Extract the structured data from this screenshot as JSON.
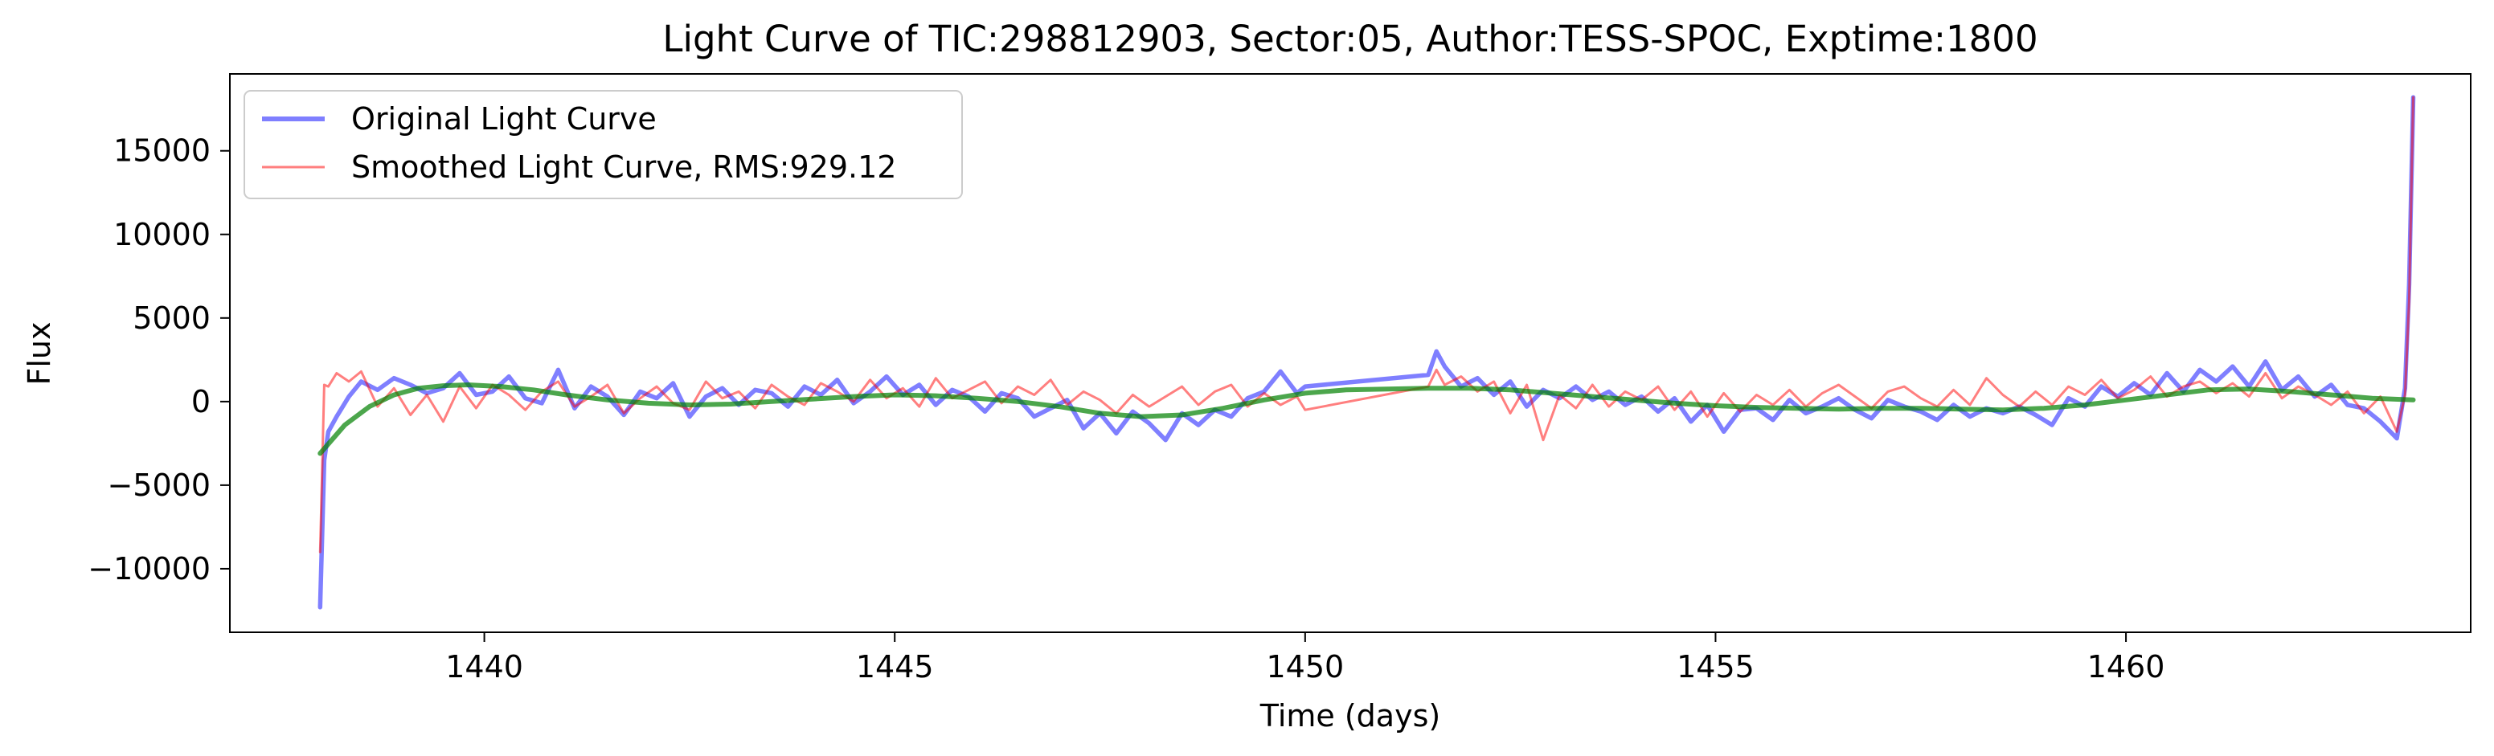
{
  "chart_data": {
    "type": "line",
    "title": "Light Curve of TIC:298812903, Sector:05, Author:TESS-SPOC, Exptime:1800",
    "xlabel": "Time (days)",
    "ylabel": "Flux",
    "xlim": [
      1436.9,
      1464.2
    ],
    "ylim": [
      -13800,
      19600
    ],
    "xticks": [
      1440,
      1445,
      1450,
      1455,
      1460
    ],
    "yticks": [
      -10000,
      -5000,
      0,
      5000,
      10000,
      15000
    ],
    "xtick_labels": [
      "1440",
      "1445",
      "1450",
      "1455",
      "1460"
    ],
    "ytick_labels": [
      "−10000",
      "−5000",
      "0",
      "5000",
      "10000",
      "15000"
    ],
    "grid": false,
    "legend": {
      "placement": "top-left",
      "entries": [
        "Original Light Curve",
        "Smoothed Light Curve, RMS:929.12"
      ]
    },
    "series": [
      {
        "name": "Original Light Curve",
        "color": "#0000ff",
        "opacity": 0.5,
        "style": "thick",
        "x": [
          1438.0,
          1438.05,
          1438.1,
          1438.2,
          1438.35,
          1438.5,
          1438.7,
          1438.9,
          1439.1,
          1439.3,
          1439.5,
          1439.7,
          1439.9,
          1440.1,
          1440.3,
          1440.5,
          1440.7,
          1440.9,
          1441.1,
          1441.3,
          1441.5,
          1441.7,
          1441.9,
          1442.1,
          1442.3,
          1442.5,
          1442.7,
          1442.9,
          1443.1,
          1443.3,
          1443.5,
          1443.7,
          1443.9,
          1444.1,
          1444.3,
          1444.5,
          1444.7,
          1444.9,
          1445.1,
          1445.3,
          1445.5,
          1445.7,
          1445.9,
          1446.1,
          1446.3,
          1446.5,
          1446.7,
          1446.9,
          1447.1,
          1447.3,
          1447.5,
          1447.7,
          1447.9,
          1448.1,
          1448.3,
          1448.5,
          1448.7,
          1448.9,
          1449.1,
          1449.3,
          1449.5,
          1449.7,
          1449.9,
          1450.0,
          1451.5,
          1451.6,
          1451.7,
          1451.9,
          1452.1,
          1452.3,
          1452.5,
          1452.7,
          1452.9,
          1453.1,
          1453.3,
          1453.5,
          1453.7,
          1453.9,
          1454.1,
          1454.3,
          1454.5,
          1454.7,
          1454.9,
          1455.1,
          1455.3,
          1455.5,
          1455.7,
          1455.9,
          1456.1,
          1456.3,
          1456.5,
          1456.7,
          1456.9,
          1457.1,
          1457.3,
          1457.5,
          1457.7,
          1457.9,
          1458.1,
          1458.3,
          1458.5,
          1458.7,
          1458.9,
          1459.1,
          1459.3,
          1459.5,
          1459.7,
          1459.9,
          1460.1,
          1460.3,
          1460.5,
          1460.7,
          1460.9,
          1461.1,
          1461.3,
          1461.5,
          1461.7,
          1461.9,
          1462.1,
          1462.3,
          1462.5,
          1462.7,
          1462.9,
          1463.1,
          1463.3,
          1463.4,
          1463.45,
          1463.5
        ],
        "y": [
          -12300,
          -3500,
          -1800,
          -900,
          300,
          1200,
          700,
          1400,
          1000,
          500,
          800,
          1700,
          400,
          600,
          1500,
          200,
          -100,
          1900,
          -400,
          900,
          300,
          -800,
          600,
          200,
          1100,
          -900,
          300,
          800,
          -200,
          700,
          500,
          -300,
          900,
          400,
          1300,
          -100,
          600,
          1500,
          400,
          1000,
          -200,
          700,
          300,
          -600,
          500,
          200,
          -900,
          -400,
          100,
          -1600,
          -700,
          -1900,
          -600,
          -1300,
          -2300,
          -700,
          -1400,
          -500,
          -900,
          200,
          600,
          1800,
          500,
          900,
          1600,
          3000,
          2100,
          900,
          1400,
          400,
          1200,
          -300,
          700,
          200,
          900,
          100,
          600,
          -200,
          300,
          -600,
          200,
          -1200,
          -200,
          -1800,
          -500,
          -400,
          -1100,
          100,
          -700,
          -300,
          200,
          -500,
          -1000,
          100,
          -300,
          -600,
          -1100,
          -200,
          -900,
          -400,
          -700,
          -300,
          -800,
          -1400,
          200,
          -300,
          900,
          300,
          1100,
          400,
          1700,
          600,
          1900,
          1200,
          2100,
          900,
          2400,
          700,
          1500,
          300,
          1000,
          -200,
          -400,
          -1200,
          -2200,
          800,
          7000,
          18200
        ]
      },
      {
        "name": "Smoothed Light Curve, RMS:929.12",
        "color": "#ff0000",
        "opacity": 0.5,
        "style": "thin",
        "x": [
          1438.0,
          1438.05,
          1438.1,
          1438.2,
          1438.35,
          1438.5,
          1438.7,
          1438.9,
          1439.1,
          1439.3,
          1439.5,
          1439.7,
          1439.9,
          1440.1,
          1440.3,
          1440.5,
          1440.7,
          1440.9,
          1441.1,
          1441.3,
          1441.5,
          1441.7,
          1441.9,
          1442.1,
          1442.3,
          1442.5,
          1442.7,
          1442.9,
          1443.1,
          1443.3,
          1443.5,
          1443.7,
          1443.9,
          1444.1,
          1444.3,
          1444.5,
          1444.7,
          1444.9,
          1445.1,
          1445.3,
          1445.5,
          1445.7,
          1445.9,
          1446.1,
          1446.3,
          1446.5,
          1446.7,
          1446.9,
          1447.1,
          1447.3,
          1447.5,
          1447.7,
          1447.9,
          1448.1,
          1448.3,
          1448.5,
          1448.7,
          1448.9,
          1449.1,
          1449.3,
          1449.5,
          1449.7,
          1449.9,
          1450.0,
          1451.5,
          1451.6,
          1451.7,
          1451.9,
          1452.1,
          1452.3,
          1452.5,
          1452.7,
          1452.9,
          1453.1,
          1453.3,
          1453.5,
          1453.7,
          1453.9,
          1454.1,
          1454.3,
          1454.5,
          1454.7,
          1454.9,
          1455.1,
          1455.3,
          1455.5,
          1455.7,
          1455.9,
          1456.1,
          1456.3,
          1456.5,
          1456.7,
          1456.9,
          1457.1,
          1457.3,
          1457.5,
          1457.7,
          1457.9,
          1458.1,
          1458.3,
          1458.5,
          1458.7,
          1458.9,
          1459.1,
          1459.3,
          1459.5,
          1459.7,
          1459.9,
          1460.1,
          1460.3,
          1460.5,
          1460.7,
          1460.9,
          1461.1,
          1461.3,
          1461.5,
          1461.7,
          1461.9,
          1462.1,
          1462.3,
          1462.5,
          1462.7,
          1462.9,
          1463.1,
          1463.3,
          1463.4,
          1463.45,
          1463.5
        ],
        "y": [
          -9000,
          1000,
          900,
          1700,
          1200,
          1800,
          -300,
          800,
          -800,
          400,
          -1200,
          900,
          -400,
          1000,
          400,
          -500,
          600,
          1200,
          -300,
          300,
          1000,
          -700,
          200,
          900,
          -100,
          -500,
          1200,
          200,
          600,
          -400,
          1000,
          300,
          -200,
          1100,
          600,
          0,
          1300,
          200,
          800,
          -300,
          1400,
          200,
          700,
          1200,
          -100,
          900,
          400,
          1300,
          -200,
          600,
          100,
          -700,
          400,
          -300,
          300,
          900,
          -200,
          600,
          1000,
          -300,
          500,
          -200,
          300,
          -500,
          900,
          1900,
          1000,
          1500,
          600,
          1200,
          -700,
          1000,
          -2300,
          400,
          -400,
          1000,
          -300,
          600,
          100,
          900,
          -500,
          600,
          -900,
          500,
          -600,
          400,
          -200,
          700,
          -300,
          500,
          1000,
          300,
          -400,
          600,
          900,
          200,
          -300,
          700,
          -200,
          1400,
          400,
          -300,
          600,
          -200,
          900,
          400,
          1300,
          200,
          700,
          1500,
          300,
          900,
          1200,
          500,
          1100,
          300,
          1700,
          200,
          900,
          400,
          -200,
          600,
          -700,
          300,
          -1800,
          400,
          6000,
          18200
        ]
      },
      {
        "name": "",
        "color": "#008000",
        "opacity": 0.7,
        "style": "trend",
        "x": [
          1438.0,
          1438.3,
          1438.6,
          1438.9,
          1439.2,
          1439.5,
          1439.8,
          1440.2,
          1440.6,
          1441.0,
          1441.5,
          1442.0,
          1442.5,
          1443.0,
          1443.5,
          1444.0,
          1444.5,
          1445.0,
          1445.5,
          1446.0,
          1446.5,
          1447.0,
          1447.5,
          1448.0,
          1448.5,
          1449.0,
          1449.5,
          1450.0,
          1450.5,
          1451.0,
          1451.5,
          1452.0,
          1452.5,
          1453.0,
          1453.5,
          1454.0,
          1454.5,
          1455.0,
          1455.5,
          1456.0,
          1456.5,
          1457.0,
          1457.5,
          1458.0,
          1458.5,
          1459.0,
          1459.5,
          1460.0,
          1460.5,
          1461.0,
          1461.5,
          1462.0,
          1462.5,
          1463.0,
          1463.5
        ],
        "y": [
          -3100,
          -1400,
          -300,
          400,
          800,
          950,
          1000,
          900,
          700,
          400,
          100,
          -100,
          -200,
          -150,
          0,
          150,
          300,
          400,
          350,
          200,
          0,
          -300,
          -700,
          -900,
          -800,
          -400,
          100,
          500,
          700,
          750,
          800,
          800,
          700,
          500,
          300,
          100,
          -100,
          -250,
          -350,
          -400,
          -450,
          -400,
          -400,
          -450,
          -500,
          -400,
          -200,
          100,
          400,
          700,
          750,
          600,
          400,
          200,
          100
        ]
      }
    ]
  }
}
